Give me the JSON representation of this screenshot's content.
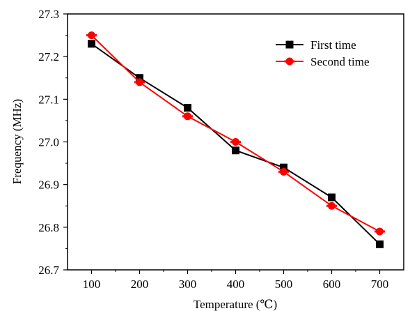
{
  "chart_data": {
    "type": "line",
    "xlabel": "Temperature (℃)",
    "ylabel": "Frequency (MHz)",
    "x": [
      100,
      200,
      300,
      400,
      500,
      600,
      700
    ],
    "xticks": [
      100,
      200,
      300,
      400,
      500,
      600,
      700
    ],
    "xlim": [
      50,
      750
    ],
    "ylim": [
      26.7,
      27.3
    ],
    "yticks": [
      26.7,
      26.8,
      26.9,
      27.0,
      27.1,
      27.2,
      27.3
    ],
    "ytick_labels": [
      "26.7",
      "26.8",
      "26.9",
      "27.0",
      "27.1",
      "27.2",
      "27.3"
    ],
    "grid": false,
    "legend_position": "top-right",
    "series": [
      {
        "name": "First time",
        "color": "#000000",
        "marker": "square",
        "values": [
          27.23,
          27.15,
          27.08,
          26.98,
          26.94,
          26.87,
          26.76
        ]
      },
      {
        "name": "Second time",
        "color": "#ff0000",
        "marker": "circle",
        "values": [
          27.25,
          27.14,
          27.06,
          27.0,
          26.93,
          26.85,
          26.79
        ]
      }
    ]
  }
}
